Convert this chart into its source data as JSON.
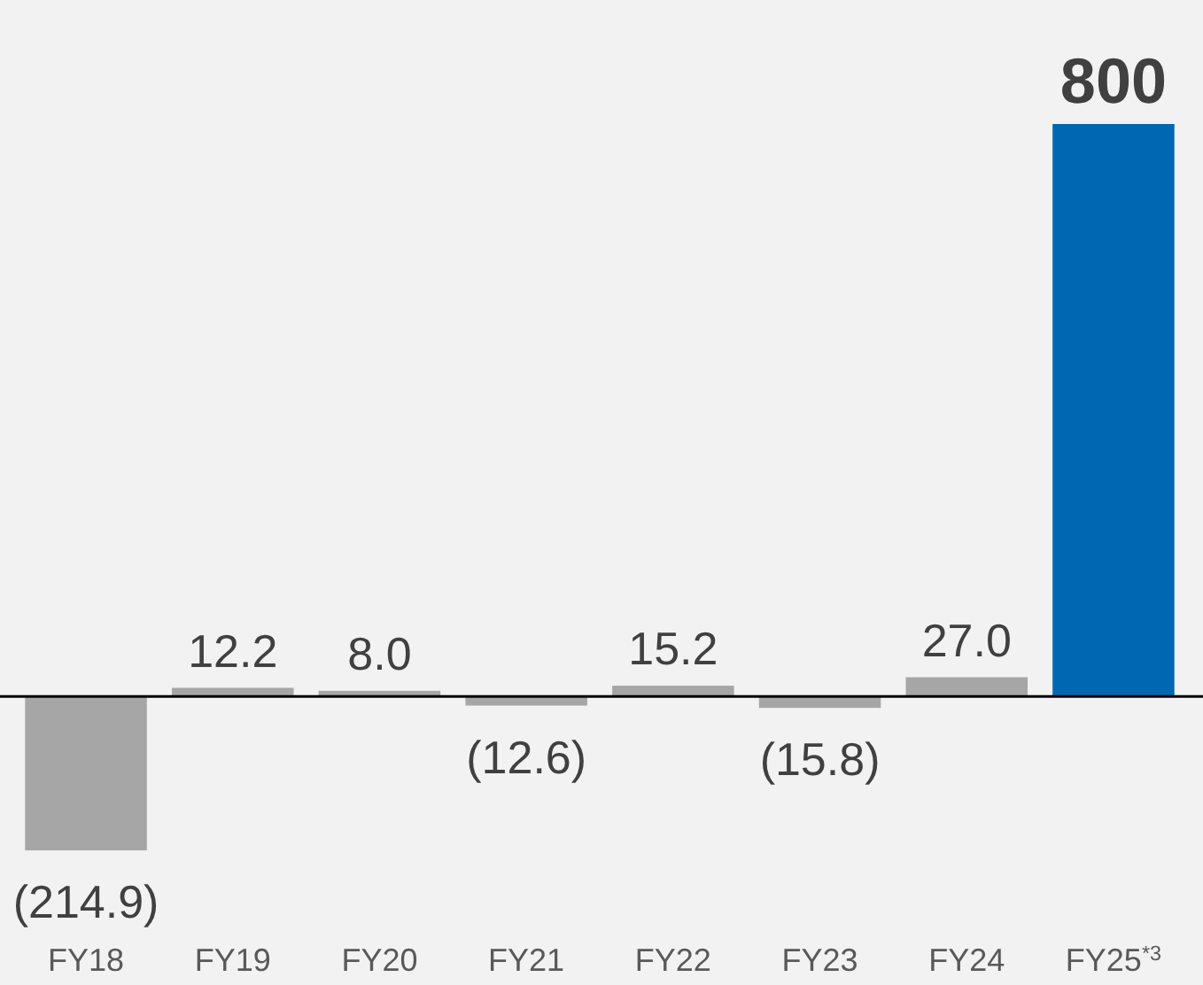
{
  "chart_data": {
    "type": "bar",
    "categories": [
      "FY18",
      "FY19",
      "FY20",
      "FY21",
      "FY22",
      "FY23",
      "FY24",
      "FY25$^{*3}$"
    ],
    "values": [
      -214.9,
      12.2,
      8.0,
      -12.6,
      15.2,
      -15.8,
      27.0,
      800
    ],
    "colors": [
      "#a6a6a6",
      "#a6a6a6",
      "#a6a6a6",
      "#a6a6a6",
      "#a6a6a6",
      "#a6a6a6",
      "#a6a6a6",
      "#0068b3"
    ],
    "value_labels": [
      "(214.9)",
      "12.2",
      "8.0",
      "(12.6)",
      "15.2",
      "(15.8)",
      "27.0",
      "800"
    ],
    "ylim": [
      -214.9,
      800
    ],
    "tick_labels": "x"
  }
}
